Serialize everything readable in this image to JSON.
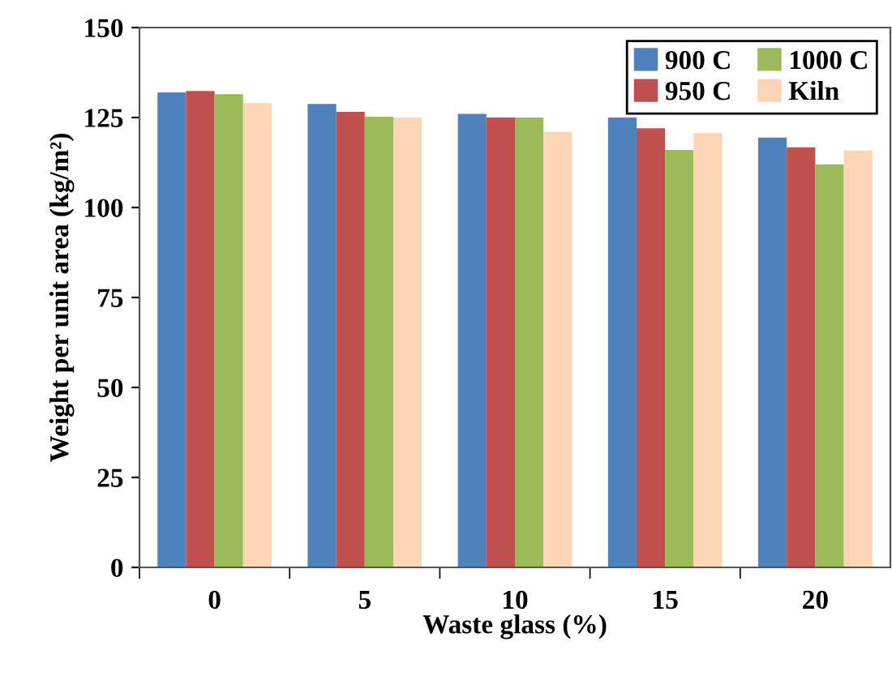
{
  "chart_data": {
    "type": "bar",
    "xlabel": "Waste glass (%)",
    "ylabel": "Weight per unit area (kg/m²)",
    "categories": [
      "0",
      "5",
      "10",
      "15",
      "20"
    ],
    "series": [
      {
        "name": "900 C",
        "color": "#4f81bd",
        "values": [
          132,
          128.8,
          126,
          125,
          119.4
        ]
      },
      {
        "name": "950 C",
        "color": "#c0504d",
        "values": [
          132.4,
          126.6,
          125,
          122,
          116.7
        ]
      },
      {
        "name": "1000 C",
        "color": "#9bbb59",
        "values": [
          131.5,
          125.2,
          125,
          116,
          112
        ]
      },
      {
        "name": "Kiln",
        "color": "#fcd5b5",
        "values": [
          129,
          125,
          121,
          120.7,
          115.8
        ]
      }
    ],
    "ylim": [
      0,
      150
    ],
    "yticks": [
      0,
      25,
      50,
      75,
      100,
      125,
      150
    ],
    "grid": false,
    "legend": "top right"
  }
}
